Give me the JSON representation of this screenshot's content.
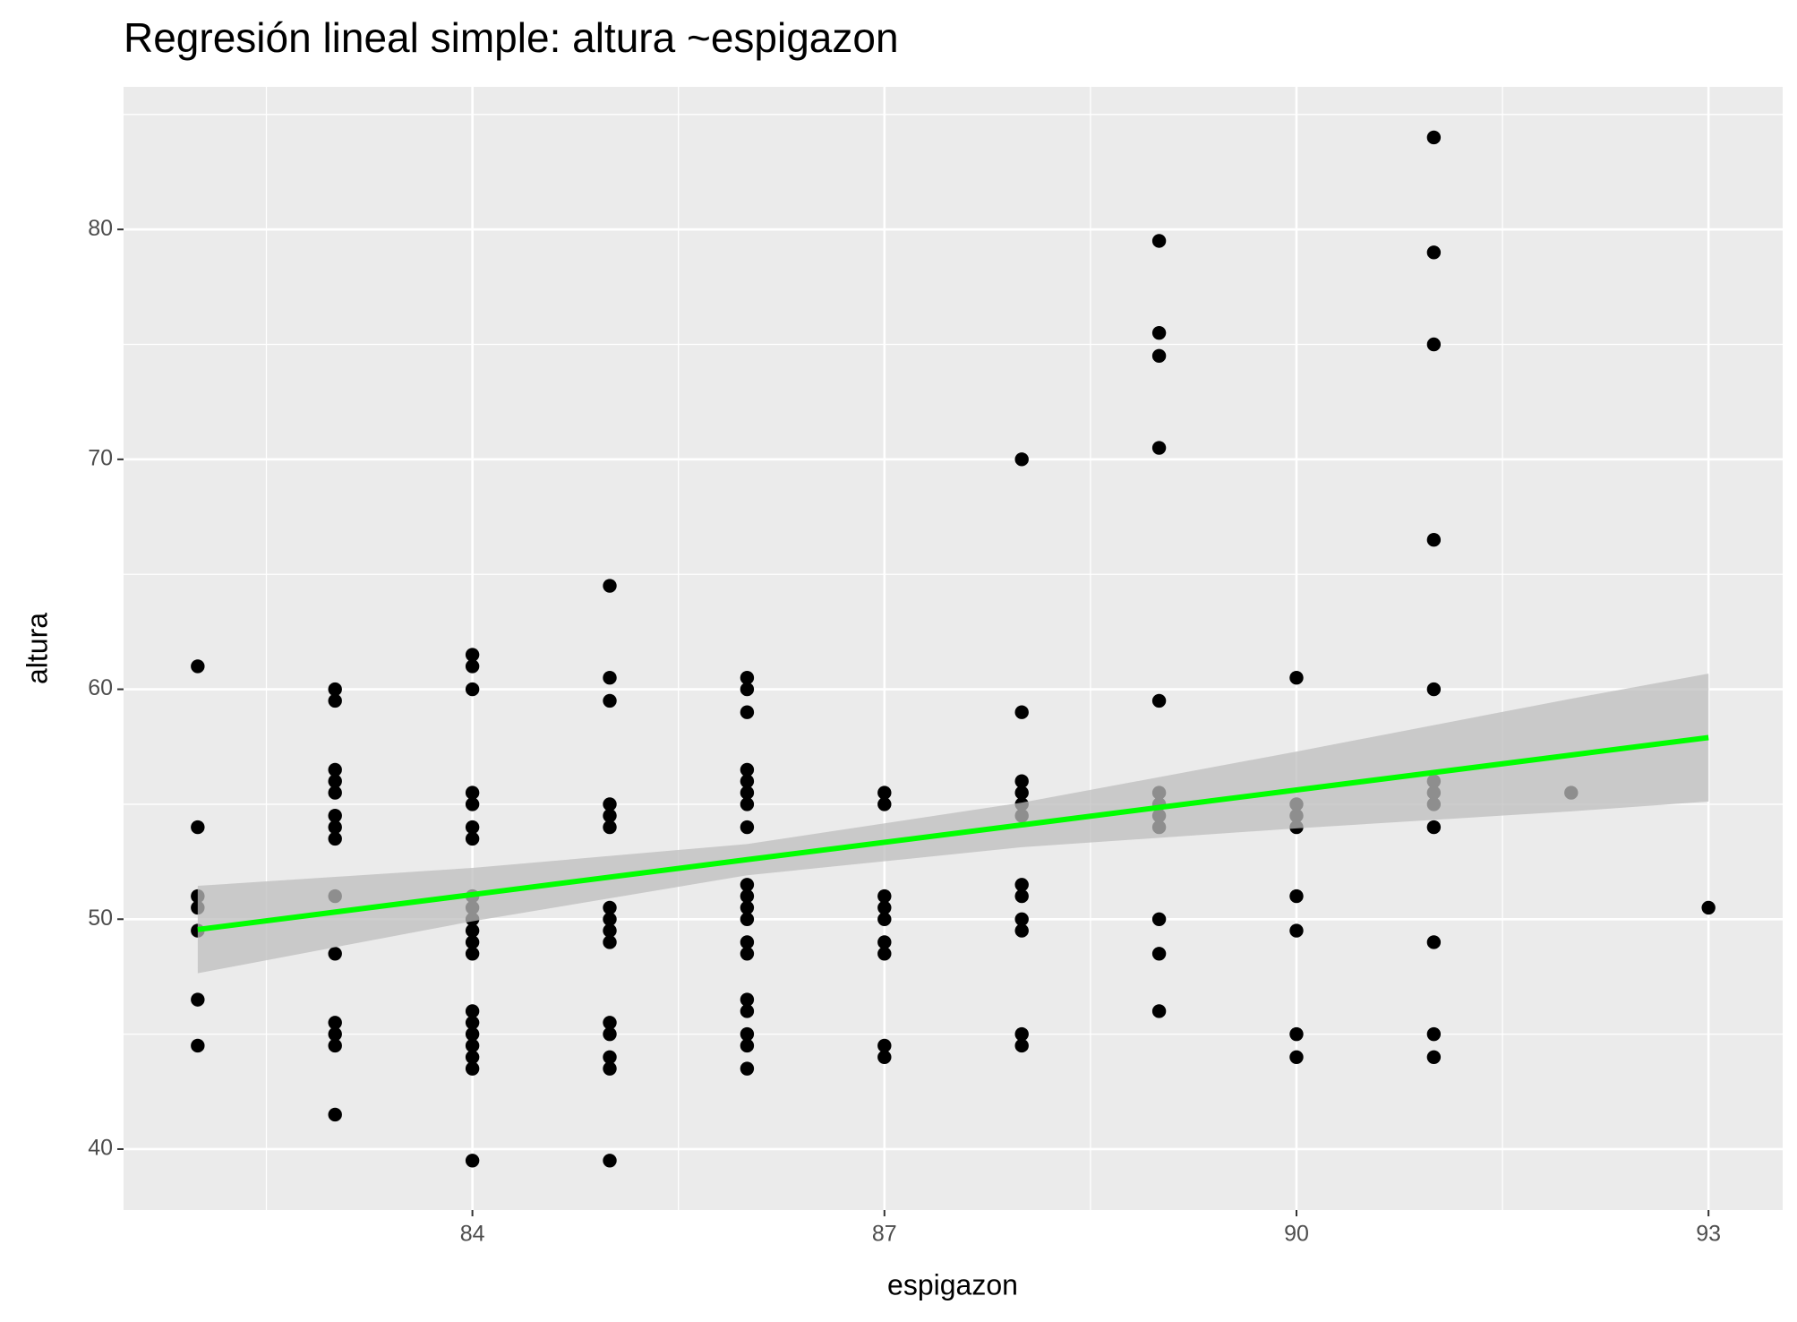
{
  "chart_data": {
    "type": "scatter",
    "title": "Regresión lineal simple:  altura ~espigazon",
    "x_label": "espigazon",
    "y_label": "altura",
    "xlim": [
      81.46,
      93.54
    ],
    "ylim": [
      37.35,
      86.2
    ],
    "xticks": [
      84,
      87,
      90,
      93
    ],
    "yticks": [
      40,
      50,
      60,
      70,
      80
    ],
    "grid": true,
    "point_color": "#000000",
    "x": [
      82,
      82,
      82,
      82,
      82,
      82,
      82,
      83,
      83,
      83,
      83,
      83,
      83,
      83,
      83,
      83,
      83,
      83,
      83,
      83,
      83,
      84,
      84,
      84,
      84,
      84,
      84,
      84,
      84,
      84,
      84,
      84,
      84,
      84,
      84,
      84,
      84,
      84,
      84,
      84,
      84,
      85,
      85,
      85,
      85,
      85,
      85,
      85,
      85,
      85,
      85,
      85,
      85,
      85,
      85,
      85,
      86,
      86,
      86,
      86,
      86,
      86,
      86,
      86,
      86,
      86,
      86,
      86,
      86,
      86,
      86,
      86,
      86,
      86,
      86,
      87,
      87,
      87,
      87,
      87,
      87,
      87,
      87,
      87,
      88,
      88,
      88,
      88,
      88,
      88,
      88,
      88,
      88,
      88,
      88,
      88,
      89,
      89,
      89,
      89,
      89,
      89,
      89,
      89,
      89,
      89,
      89,
      89,
      90,
      90,
      90,
      90,
      90,
      90,
      90,
      90,
      91,
      91,
      91,
      91,
      91,
      91,
      91,
      91,
      91,
      91,
      91,
      91,
      92,
      93
    ],
    "values": [
      61,
      54,
      51,
      50.5,
      49.5,
      46.5,
      44.5,
      60,
      59.5,
      56.5,
      56,
      55.5,
      54.5,
      54,
      53.5,
      51,
      48.5,
      45.5,
      45,
      44.5,
      41.5,
      61.5,
      61,
      60,
      55.5,
      55,
      54,
      53.5,
      51,
      50.5,
      50,
      49.5,
      49,
      48.5,
      46,
      45.5,
      45,
      44.5,
      44,
      43.5,
      39.5,
      64.5,
      60.5,
      59.5,
      55,
      54.5,
      54,
      50.5,
      50,
      49.5,
      49,
      45.5,
      45,
      44,
      43.5,
      39.5,
      60.5,
      60,
      59,
      56.5,
      56,
      55.5,
      55,
      54,
      51.5,
      51,
      50.5,
      50,
      49,
      48.5,
      46.5,
      46,
      45,
      44.5,
      43.5,
      55.5,
      55,
      51,
      50.5,
      50,
      49,
      48.5,
      44.5,
      44,
      70,
      59,
      56,
      55.5,
      55,
      54.5,
      51.5,
      51,
      50,
      49.5,
      45,
      44.5,
      79.5,
      75.5,
      74.5,
      70.5,
      59.5,
      55.5,
      55,
      54.5,
      54,
      50,
      48.5,
      46,
      60.5,
      55,
      54.5,
      54,
      51,
      49.5,
      45,
      44,
      84,
      79,
      75,
      66.5,
      60,
      56,
      55.5,
      55,
      54,
      49,
      45,
      44,
      55.5,
      50.5
    ],
    "fit": {
      "color": "#00ff00",
      "band_color": "#bebebe",
      "x": [
        82,
        84,
        86,
        88,
        90,
        92,
        93
      ],
      "y": [
        49.55,
        51.07,
        52.59,
        54.1,
        55.62,
        57.14,
        57.9
      ],
      "lower": [
        47.65,
        49.91,
        51.91,
        53.13,
        53.95,
        54.69,
        55.12
      ],
      "upper": [
        51.45,
        52.23,
        53.27,
        55.07,
        57.29,
        59.59,
        60.68
      ]
    }
  }
}
